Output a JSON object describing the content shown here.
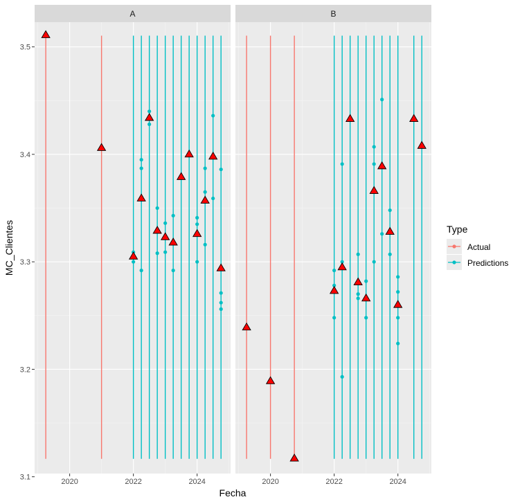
{
  "chart_data": {
    "type": "scatter",
    "xlabel": "Fecha",
    "ylabel": "MC_Clientes",
    "xlim": [
      2018.9,
      2025.05
    ],
    "ylim": [
      3.103,
      3.523
    ],
    "x_ticks": [
      2020,
      2022,
      2024
    ],
    "y_ticks": [
      3.1,
      3.2,
      3.3,
      3.4,
      3.5
    ],
    "x_tick_labels": [
      "2020",
      "2022",
      "2024"
    ],
    "y_tick_labels": [
      "3.1",
      "3.2",
      "3.3",
      "3.4",
      "3.5"
    ],
    "line_range": [
      3.1167,
      3.5104
    ],
    "legend": {
      "title": "Type",
      "entries": [
        {
          "label": "Actual",
          "color": "#F8766D"
        },
        {
          "label": "Predictions",
          "color": "#00BFC4"
        }
      ]
    },
    "marker_color": "#FF0000",
    "panels": [
      {
        "strip": "A",
        "actual_lines": [
          2019.25,
          2021.0
        ],
        "prediction_lines": [
          2022.0,
          2022.25,
          2022.5,
          2022.75,
          2023.0,
          2023.25,
          2023.5,
          2023.75,
          2024.0,
          2024.25,
          2024.5,
          2024.75
        ],
        "prediction_points": [
          {
            "x": 2022.0,
            "y": 3.309
          },
          {
            "x": 2022.0,
            "y": 3.3
          },
          {
            "x": 2022.25,
            "y": 3.395
          },
          {
            "x": 2022.25,
            "y": 3.387
          },
          {
            "x": 2022.25,
            "y": 3.292
          },
          {
            "x": 2022.5,
            "y": 3.44
          },
          {
            "x": 2022.5,
            "y": 3.428
          },
          {
            "x": 2022.75,
            "y": 3.35
          },
          {
            "x": 2022.75,
            "y": 3.308
          },
          {
            "x": 2023.0,
            "y": 3.336
          },
          {
            "x": 2023.0,
            "y": 3.309
          },
          {
            "x": 2023.25,
            "y": 3.343
          },
          {
            "x": 2023.25,
            "y": 3.292
          },
          {
            "x": 2024.0,
            "y": 3.341
          },
          {
            "x": 2024.0,
            "y": 3.335
          },
          {
            "x": 2024.0,
            "y": 3.3
          },
          {
            "x": 2024.25,
            "y": 3.387
          },
          {
            "x": 2024.25,
            "y": 3.365
          },
          {
            "x": 2024.25,
            "y": 3.316
          },
          {
            "x": 2024.5,
            "y": 3.436
          },
          {
            "x": 2024.5,
            "y": 3.359
          },
          {
            "x": 2024.75,
            "y": 3.386
          },
          {
            "x": 2024.75,
            "y": 3.271
          },
          {
            "x": 2024.75,
            "y": 3.262
          },
          {
            "x": 2024.75,
            "y": 3.256
          }
        ],
        "actual_points": [
          {
            "x": 2019.25,
            "y": 3.511
          },
          {
            "x": 2021.0,
            "y": 3.406
          },
          {
            "x": 2022.0,
            "y": 3.305
          },
          {
            "x": 2022.25,
            "y": 3.359
          },
          {
            "x": 2022.5,
            "y": 3.434
          },
          {
            "x": 2022.75,
            "y": 3.329
          },
          {
            "x": 2023.0,
            "y": 3.323
          },
          {
            "x": 2023.25,
            "y": 3.318
          },
          {
            "x": 2023.5,
            "y": 3.379
          },
          {
            "x": 2023.75,
            "y": 3.4
          },
          {
            "x": 2024.0,
            "y": 3.326
          },
          {
            "x": 2024.25,
            "y": 3.357
          },
          {
            "x": 2024.5,
            "y": 3.398
          },
          {
            "x": 2024.75,
            "y": 3.294
          }
        ]
      },
      {
        "strip": "B",
        "actual_lines": [
          2019.25,
          2020.0,
          2020.75
        ],
        "prediction_lines": [
          2022.0,
          2022.25,
          2022.5,
          2022.75,
          2023.0,
          2023.25,
          2023.5,
          2023.75,
          2024.0,
          2024.5,
          2024.75
        ],
        "prediction_points": [
          {
            "x": 2022.0,
            "y": 3.292
          },
          {
            "x": 2022.0,
            "y": 3.278
          },
          {
            "x": 2022.0,
            "y": 3.248
          },
          {
            "x": 2022.25,
            "y": 3.391
          },
          {
            "x": 2022.25,
            "y": 3.3
          },
          {
            "x": 2022.25,
            "y": 3.193
          },
          {
            "x": 2022.75,
            "y": 3.307
          },
          {
            "x": 2022.75,
            "y": 3.27
          },
          {
            "x": 2022.75,
            "y": 3.266
          },
          {
            "x": 2023.0,
            "y": 3.282
          },
          {
            "x": 2023.0,
            "y": 3.248
          },
          {
            "x": 2023.25,
            "y": 3.407
          },
          {
            "x": 2023.25,
            "y": 3.391
          },
          {
            "x": 2023.25,
            "y": 3.3
          },
          {
            "x": 2023.5,
            "y": 3.451
          },
          {
            "x": 2023.5,
            "y": 3.326
          },
          {
            "x": 2023.75,
            "y": 3.348
          },
          {
            "x": 2023.75,
            "y": 3.307
          },
          {
            "x": 2024.0,
            "y": 3.286
          },
          {
            "x": 2024.0,
            "y": 3.272
          },
          {
            "x": 2024.0,
            "y": 3.248
          },
          {
            "x": 2024.0,
            "y": 3.224
          }
        ],
        "actual_points": [
          {
            "x": 2019.25,
            "y": 3.239
          },
          {
            "x": 2020.0,
            "y": 3.189
          },
          {
            "x": 2020.75,
            "y": 3.117
          },
          {
            "x": 2022.0,
            "y": 3.273
          },
          {
            "x": 2022.25,
            "y": 3.295
          },
          {
            "x": 2022.5,
            "y": 3.433
          },
          {
            "x": 2022.75,
            "y": 3.281
          },
          {
            "x": 2023.0,
            "y": 3.266
          },
          {
            "x": 2023.25,
            "y": 3.366
          },
          {
            "x": 2023.5,
            "y": 3.389
          },
          {
            "x": 2023.75,
            "y": 3.328
          },
          {
            "x": 2024.0,
            "y": 3.26
          },
          {
            "x": 2024.5,
            "y": 3.433
          },
          {
            "x": 2024.75,
            "y": 3.408
          }
        ]
      }
    ]
  }
}
